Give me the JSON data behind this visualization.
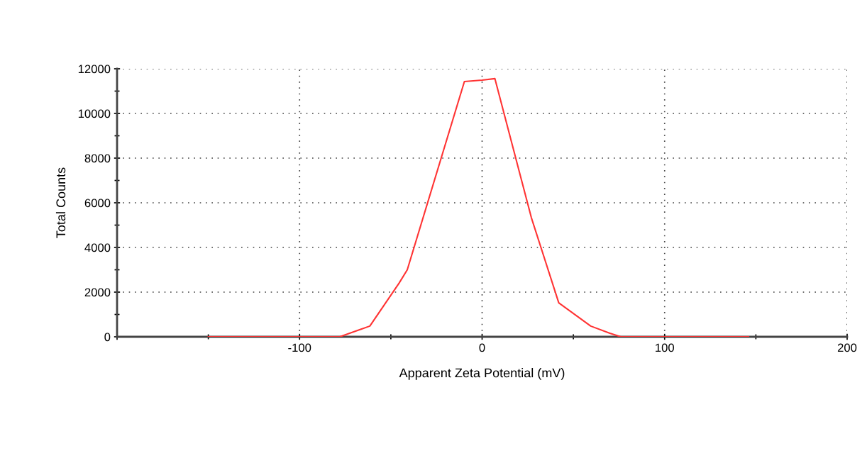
{
  "chart_data": {
    "type": "line",
    "xlabel": "Apparent Zeta Potential (mV)",
    "ylabel": "Total Counts",
    "x": [
      -150,
      -78,
      -61.5,
      -45.5,
      -41,
      -9.7,
      0,
      7,
      27,
      42,
      59.5,
      70,
      76,
      146
    ],
    "series": [
      {
        "color": "#ff3333",
        "values": [
          0,
          0,
          480,
          2400,
          3000,
          11430,
          11490,
          11560,
          5330,
          1520,
          480,
          160,
          0,
          0
        ]
      }
    ],
    "xlim": [
      -200,
      200
    ],
    "xticks": [
      {
        "value": -200,
        "label": null
      },
      -100,
      0,
      100,
      200
    ],
    "ylim": [
      0,
      12000
    ],
    "yticks": [
      0,
      2000,
      4000,
      6000,
      8000,
      10000,
      12000
    ],
    "grid": true,
    "line_style": "solid",
    "marker": "none",
    "legend": false
  }
}
